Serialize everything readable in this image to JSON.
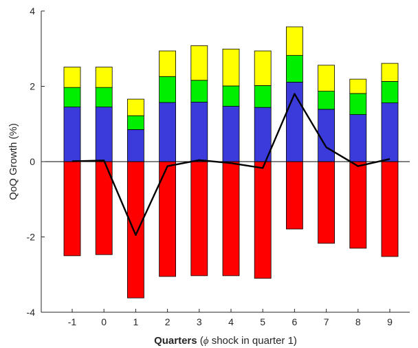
{
  "chart_data": {
    "type": "bar",
    "stacked": true,
    "title": "",
    "xlabel": {
      "bold": "Quarters",
      "open": " (",
      "symbol": "ϕ",
      "rest": " shock in quarter 1)"
    },
    "ylabel": "QoQ Growth (%)",
    "categories": [
      "-1",
      "0",
      "1",
      "2",
      "3",
      "4",
      "5",
      "6",
      "7",
      "8",
      "9"
    ],
    "ylim": [
      -4,
      4
    ],
    "yticks": [
      "-4",
      "-2",
      "0",
      "2",
      "4"
    ],
    "grid": false,
    "series": [
      {
        "color": "#3b3bdb",
        "values": [
          1.45,
          1.45,
          0.85,
          1.57,
          1.58,
          1.47,
          1.44,
          2.11,
          1.39,
          1.25,
          1.56
        ]
      },
      {
        "color": "#00ee00",
        "values": [
          0.52,
          0.52,
          0.37,
          0.69,
          0.58,
          0.54,
          0.58,
          0.71,
          0.48,
          0.56,
          0.57
        ]
      },
      {
        "color": "#ffff00",
        "values": [
          0.54,
          0.54,
          0.44,
          0.68,
          0.92,
          0.98,
          0.92,
          0.76,
          0.69,
          0.38,
          0.48
        ]
      },
      {
        "color": "#ff0000",
        "values": [
          -2.5,
          -2.47,
          -3.62,
          -3.05,
          -3.03,
          -3.03,
          -3.1,
          -1.79,
          -2.17,
          -2.3,
          -2.52
        ]
      }
    ],
    "line": {
      "color": "#000000",
      "values": [
        0.01,
        0.03,
        -1.95,
        -0.12,
        0.04,
        -0.04,
        -0.17,
        1.8,
        0.38,
        -0.12,
        0.07
      ]
    }
  }
}
